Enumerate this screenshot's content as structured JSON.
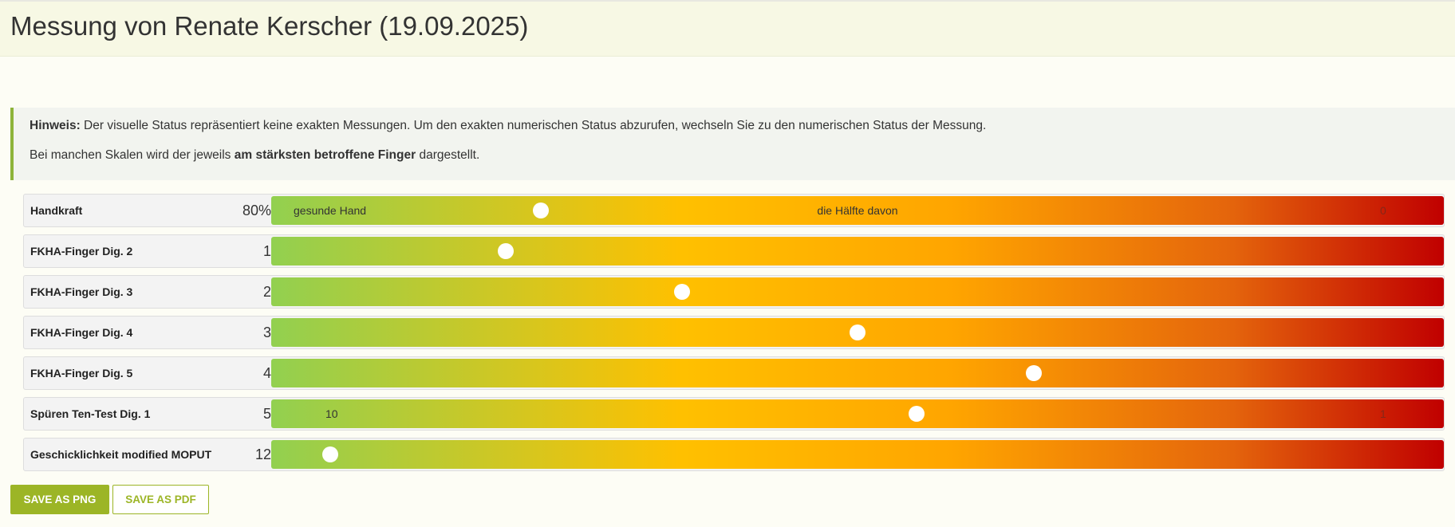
{
  "header": {
    "title": "Messung von Renate Kerscher (19.09.2025)"
  },
  "hint": {
    "label": "Hinweis:",
    "text": "Der visuelle Status repräsentiert keine exakten Messungen. Um den exakten numerischen Status abzurufen, wechseln Sie zu den numerischen Status der Messung.",
    "line2_before": "Bei manchen Skalen wird der jeweils",
    "line2_bold": "am stärksten betroffene Finger",
    "line2_after": "dargestellt."
  },
  "rows": [
    {
      "label": "Handkraft",
      "value": "80%",
      "scale": {
        "left": "gesunde Hand",
        "center": "die Hälfte davon",
        "right": "0"
      }
    },
    {
      "label": "FKHA-Finger Dig. 2",
      "value": "1"
    },
    {
      "label": "FKHA-Finger Dig. 3",
      "value": "2"
    },
    {
      "label": "FKHA-Finger Dig. 4",
      "value": "3"
    },
    {
      "label": "FKHA-Finger Dig. 5",
      "value": "4"
    },
    {
      "label": "Spüren Ten-Test Dig. 1",
      "value": "5",
      "scale": {
        "left": "10",
        "right": "1"
      }
    },
    {
      "label": "Geschicklichkeit modified MOPUT",
      "value": "12"
    }
  ],
  "buttons": [
    "SAVE AS PNG",
    "SAVE AS PDF"
  ]
}
